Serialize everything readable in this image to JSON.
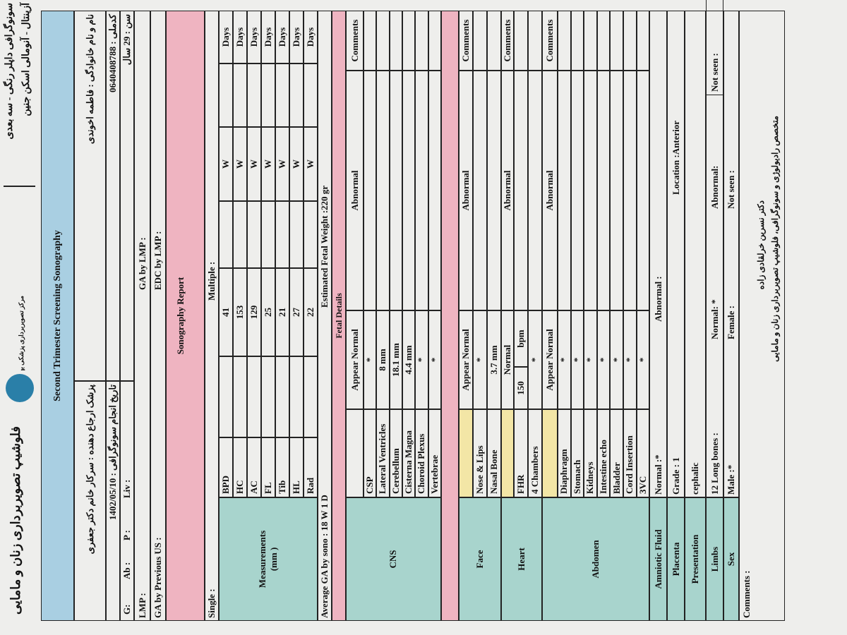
{
  "header": {
    "clinic": "فلوشیپ تصویربرداری زنان و مامایی",
    "logo_text": "مرکز تصویربرداری پزشکی بهار",
    "services": [
      "سونوگرافی داپلر رنگی - سه بعدی",
      "آزینتال - آنومالی اسکن جنین"
    ]
  },
  "title": "Second Trimester Screening Sonography",
  "patient": {
    "referrer": "پزشک ارجاع دهنده : سرکار خانم دکتر جعفری",
    "name": "نام و نام خانوادگی : فاطمه اخوندی",
    "date": "تاریخ انجام سونوگرافی : 1402/05/10",
    "national_id": "کدملی : 0640408788",
    "g": "G:",
    "ab": "Ab :",
    "p": "P :",
    "liv": "Liv :",
    "age": "سن : 29 سال",
    "lmp": "LMP :",
    "ga_lmp": "GA  by LMP :",
    "ga_prev": "GA by Previous US :",
    "edc": "EDC  by LMP :"
  },
  "report_heading": "Sonography Report",
  "single": "Single :",
  "multiple": "Multiple :",
  "measurements": {
    "label": "Measurements",
    "unit": "(mm )",
    "rows": [
      [
        "BPD",
        "41",
        "W",
        "Days"
      ],
      [
        "HC",
        "153",
        "W",
        "Days"
      ],
      [
        "AC",
        "129",
        "W",
        "Days"
      ],
      [
        "FL",
        "25",
        "W",
        "Days"
      ],
      [
        "Tib",
        "21",
        "W",
        "Days"
      ],
      [
        "HL",
        "27",
        "W",
        "Days"
      ],
      [
        "Rad",
        "22",
        "W",
        "Days"
      ]
    ]
  },
  "average_ga": "Average GA by sono : 18 W 1 D",
  "efw": "Estimated Fetal Weight :220 gr",
  "fetal_details": "Fetal Details",
  "sections": [
    {
      "name": "CNS",
      "header": [
        "Appear Normal",
        "Abnormal",
        "Comments"
      ],
      "rows": [
        [
          "CSP",
          "*"
        ],
        [
          "Lateral Ventricles",
          "8 mm"
        ],
        [
          "Cerebellum",
          "18.1 mm"
        ],
        [
          "Cisterna Magna",
          "4.4 mm"
        ],
        [
          "Choroid Plexus",
          "*"
        ],
        [
          "Vertebrae",
          "*"
        ]
      ]
    },
    {
      "name": "Face",
      "header": [
        "Appear Normal",
        "Abnormal",
        "Comments"
      ],
      "rows": [
        [
          "Nose & Lips",
          "*"
        ],
        [
          "Nasal Bone",
          "3.7  mm"
        ]
      ]
    },
    {
      "name": "Heart",
      "header": [
        "Normal",
        "Abnormal",
        "Comments"
      ],
      "rows": [
        [
          "FHR",
          "150",
          "bpm"
        ],
        [
          "4 Chambers",
          "*"
        ]
      ]
    },
    {
      "name": "Abdomen",
      "header": [
        "Appear Normal",
        "Abnormal",
        "Comments"
      ],
      "rows": [
        [
          "Diaphragm",
          "*"
        ],
        [
          "Stomach",
          "*"
        ],
        [
          "Kidneys",
          "*"
        ],
        [
          "Intestine echo",
          "*"
        ],
        [
          "Bladder",
          "*"
        ],
        [
          "Cord Insertion",
          "*"
        ],
        [
          "3VC",
          "*"
        ]
      ]
    }
  ],
  "findings": [
    {
      "label": "Amniotic Fluid",
      "items": [
        "Normal :*",
        "Abnormal :"
      ]
    },
    {
      "label": "Placenta",
      "items": [
        "Grade : 1",
        "Location :Anterior"
      ]
    },
    {
      "label": "Presentation",
      "items": [
        "cephalic"
      ]
    },
    {
      "label": "Limbs",
      "items": [
        "12 Long bones :",
        "Normal: *",
        "Abnormal:",
        "Not seen :"
      ]
    },
    {
      "label": "Sex",
      "items": [
        "Male :*",
        "Female :",
        "Not seen :"
      ]
    }
  ],
  "comments": "Comments :",
  "signature": {
    "doctor": "دکتر نسرین خرلقادی زاده",
    "specialty": "متخصص رادیولوژی و سونوگرافی، فلوشیپ تصویربرداری زنان و مامایی"
  }
}
